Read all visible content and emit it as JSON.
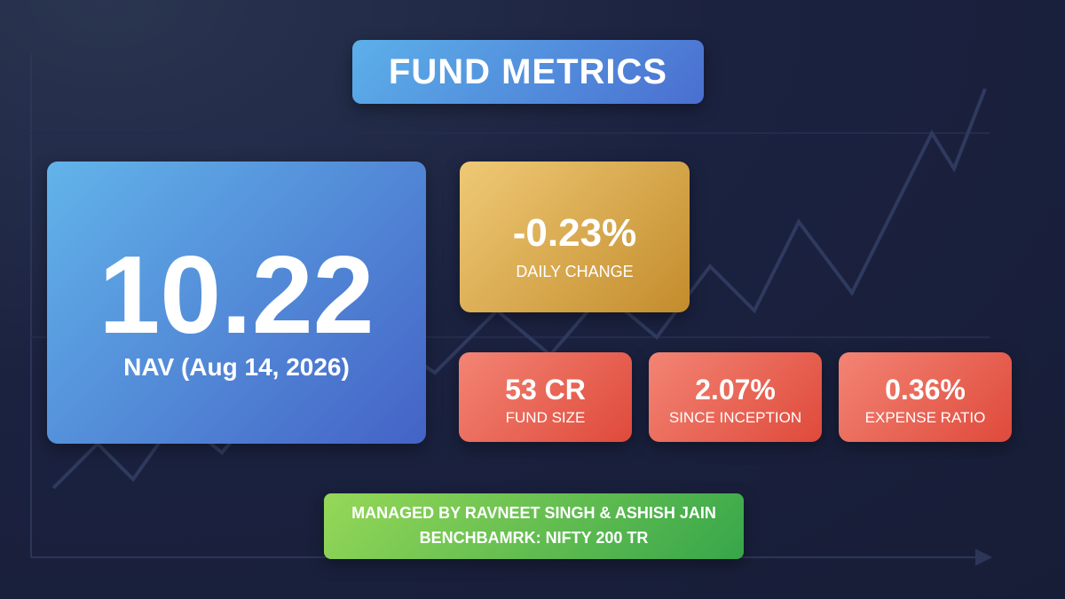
{
  "header": {
    "title": "FUND METRICS"
  },
  "nav": {
    "value": "10.22",
    "label": "NAV (Aug 14, 2026)"
  },
  "daily_change": {
    "value": "-0.23%",
    "label": "DAILY CHANGE"
  },
  "metrics": [
    {
      "value": "53 CR",
      "label": "FUND SIZE"
    },
    {
      "value": "2.07%",
      "label": "SINCE INCEPTION"
    },
    {
      "value": "0.36%",
      "label": "EXPENSE RATIO"
    }
  ],
  "footer": {
    "lines": [
      "MANAGED BY RAVNEET SINGH & ASHISH JAIN",
      "BENCHBAMRK: NIFTY 200 TR"
    ]
  }
}
